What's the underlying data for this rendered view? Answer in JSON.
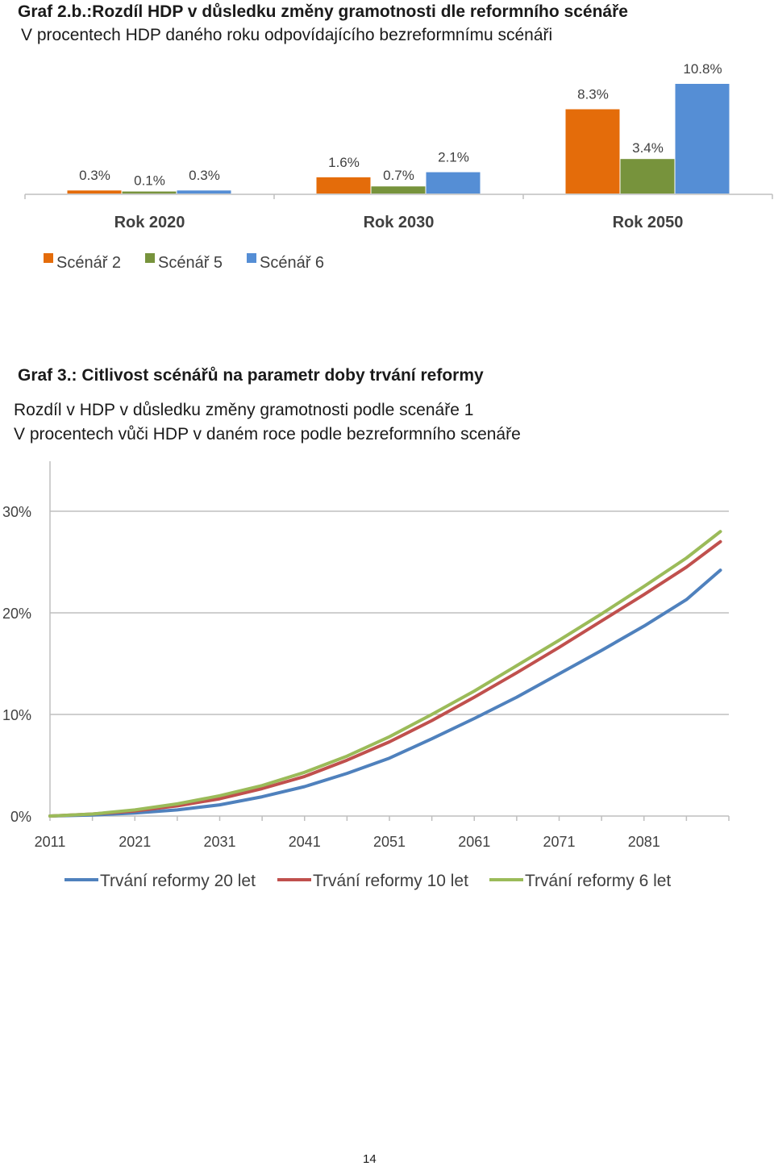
{
  "chart_data": [
    {
      "type": "bar",
      "title": "Graf 2.b.:Rozdíl HDP v důsledku změny gramotnosti dle reformního scénáře",
      "subtitle": "V procentech HDP daného roku odpovídajícího bezreformnímu scénáři",
      "categories": [
        "Rok 2020",
        "Rok 2030",
        "Rok 2050"
      ],
      "series": [
        {
          "name": "Scénář 2",
          "values": [
            0.3,
            1.6,
            8.3
          ],
          "labels": [
            "0.3%",
            "1.6%",
            "8.3%"
          ],
          "color": "#E46C0A"
        },
        {
          "name": "Scénář 5",
          "values": [
            0.1,
            0.7,
            3.4
          ],
          "labels": [
            "0.1%",
            "0.7%",
            "3.4%"
          ],
          "color": "#77933C"
        },
        {
          "name": "Scénář 6",
          "values": [
            0.3,
            2.1,
            10.8
          ],
          "labels": [
            "0.3%",
            "2.1%",
            "10.8%"
          ],
          "color": "#558ED5"
        }
      ],
      "ylim": [
        0,
        11
      ],
      "grid": false,
      "legend": "bottom-left"
    },
    {
      "type": "line",
      "title": "Graf 3.: Citlivost scénářů na parametr doby trvání reformy",
      "subtitle_lines": [
        "Rozdíl v HDP v důsledku změny gramotnosti podle scenáře 1",
        "V procentech vůči HDP v daném roce podle bezreformního scenáře"
      ],
      "x_ticks": [
        "2011",
        "2021",
        "2031",
        "2041",
        "2051",
        "2061",
        "2071",
        "2081"
      ],
      "y_ticks": [
        "0%",
        "10%",
        "20%",
        "30%"
      ],
      "xlim": [
        2011,
        2091
      ],
      "ylim": [
        0,
        30
      ],
      "x": [
        2011,
        2016,
        2021,
        2026,
        2031,
        2036,
        2041,
        2046,
        2051,
        2056,
        2061,
        2066,
        2071,
        2076,
        2081,
        2086,
        2090
      ],
      "series": [
        {
          "name": "Trvání reformy 20 let",
          "color": "#4F81BD",
          "values": [
            0,
            0.1,
            0.3,
            0.6,
            1.1,
            1.9,
            2.9,
            4.2,
            5.7,
            7.6,
            9.6,
            11.7,
            14.0,
            16.3,
            18.7,
            21.3,
            24.2
          ]
        },
        {
          "name": "Trvání reformy 10 let",
          "color": "#C0504D",
          "values": [
            0,
            0.2,
            0.5,
            1.0,
            1.7,
            2.7,
            3.9,
            5.5,
            7.3,
            9.4,
            11.7,
            14.1,
            16.6,
            19.2,
            21.8,
            24.5,
            27.0
          ]
        },
        {
          "name": "Trvání reformy 6 let",
          "color": "#9BBB59",
          "values": [
            0,
            0.2,
            0.6,
            1.2,
            2.0,
            3.0,
            4.3,
            5.9,
            7.8,
            10.0,
            12.3,
            14.8,
            17.3,
            19.9,
            22.6,
            25.4,
            28.0
          ]
        }
      ],
      "grid": true,
      "legend": "bottom"
    }
  ],
  "page_number": "14"
}
